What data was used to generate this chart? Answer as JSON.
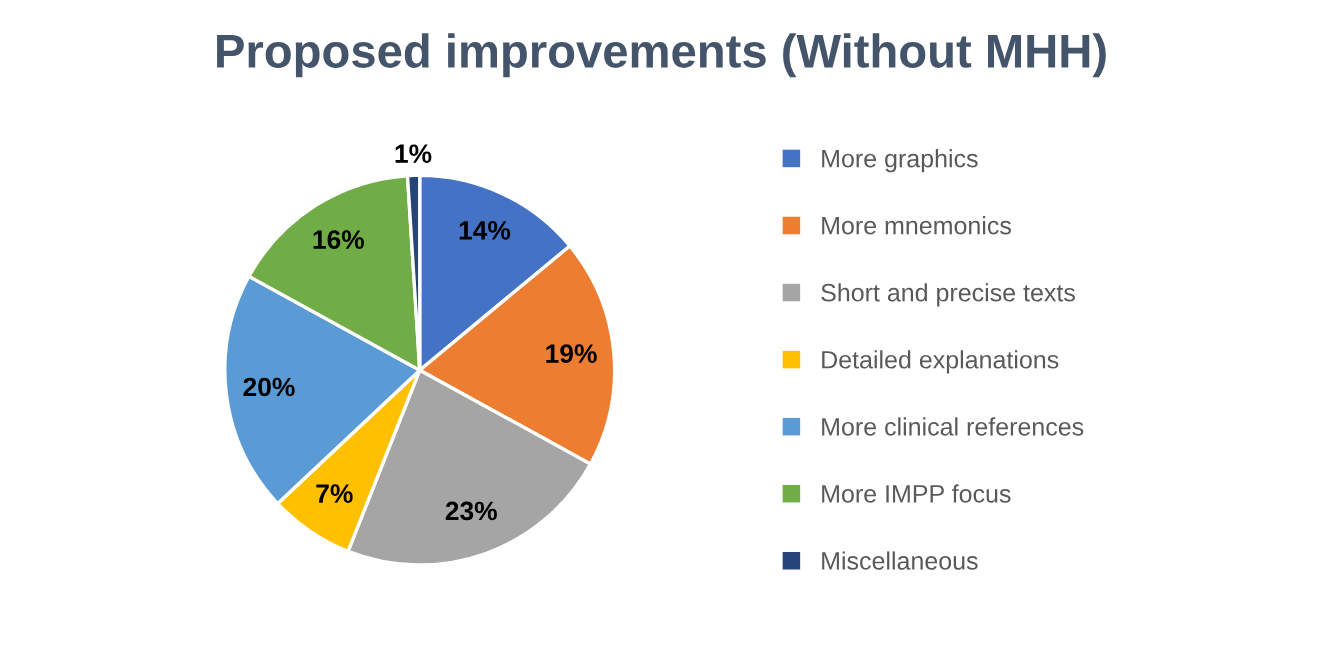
{
  "chart_data": {
    "type": "pie",
    "title": "Proposed improvements (Without MHH)",
    "categories": [
      "More graphics",
      "More mnemonics",
      "Short and precise texts",
      "Detailed explanations",
      "More clinical references",
      "More IMPP focus",
      "Miscellaneous"
    ],
    "values": [
      14,
      19,
      23,
      7,
      20,
      16,
      1
    ],
    "value_labels": [
      "14%",
      "19%",
      "23%",
      "7%",
      "20%",
      "16%",
      "1%"
    ],
    "colors": [
      "#4472c4",
      "#ed7d31",
      "#a5a5a5",
      "#ffc000",
      "#5b9bd5",
      "#70ad47",
      "#264478"
    ],
    "legend": "right"
  }
}
